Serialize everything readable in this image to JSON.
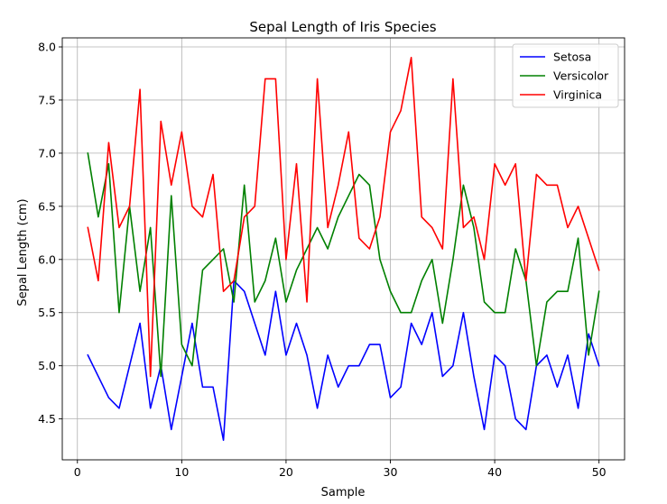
{
  "chart_data": {
    "type": "line",
    "title": "Sepal Length of Iris Species",
    "xlabel": "Sample",
    "ylabel": "Sepal Length (cm)",
    "xlim": [
      -1.45,
      52.45
    ],
    "ylim": [
      4.115,
      8.085
    ],
    "xticks": [
      0,
      10,
      20,
      30,
      40,
      50
    ],
    "xtick_labels": [
      "0",
      "10",
      "20",
      "30",
      "40",
      "50"
    ],
    "yticks": [
      4.5,
      5.0,
      5.5,
      6.0,
      6.5,
      7.0,
      7.5,
      8.0
    ],
    "ytick_labels": [
      "4.5",
      "5.0",
      "5.5",
      "6.0",
      "6.5",
      "7.0",
      "7.5",
      "8.0"
    ],
    "grid": true,
    "legend_position": "top-right",
    "x": [
      1,
      2,
      3,
      4,
      5,
      6,
      7,
      8,
      9,
      10,
      11,
      12,
      13,
      14,
      15,
      16,
      17,
      18,
      19,
      20,
      21,
      22,
      23,
      24,
      25,
      26,
      27,
      28,
      29,
      30,
      31,
      32,
      33,
      34,
      35,
      36,
      37,
      38,
      39,
      40,
      41,
      42,
      43,
      44,
      45,
      46,
      47,
      48,
      49,
      50
    ],
    "series": [
      {
        "name": "Setosa",
        "color": "#0000ff",
        "values": [
          5.1,
          4.9,
          4.7,
          4.6,
          5.0,
          5.4,
          4.6,
          5.0,
          4.4,
          4.9,
          5.4,
          4.8,
          4.8,
          4.3,
          5.8,
          5.7,
          5.4,
          5.1,
          5.7,
          5.1,
          5.4,
          5.1,
          4.6,
          5.1,
          4.8,
          5.0,
          5.0,
          5.2,
          5.2,
          4.7,
          4.8,
          5.4,
          5.2,
          5.5,
          4.9,
          5.0,
          5.5,
          4.9,
          4.4,
          5.1,
          5.0,
          4.5,
          4.4,
          5.0,
          5.1,
          4.8,
          5.1,
          4.6,
          5.3,
          5.0
        ]
      },
      {
        "name": "Versicolor",
        "color": "#008000",
        "values": [
          7.0,
          6.4,
          6.9,
          5.5,
          6.5,
          5.7,
          6.3,
          4.9,
          6.6,
          5.2,
          5.0,
          5.9,
          6.0,
          6.1,
          5.6,
          6.7,
          5.6,
          5.8,
          6.2,
          5.6,
          5.9,
          6.1,
          6.3,
          6.1,
          6.4,
          6.6,
          6.8,
          6.7,
          6.0,
          5.7,
          5.5,
          5.5,
          5.8,
          6.0,
          5.4,
          6.0,
          6.7,
          6.3,
          5.6,
          5.5,
          5.5,
          6.1,
          5.8,
          5.0,
          5.6,
          5.7,
          5.7,
          6.2,
          5.1,
          5.7
        ]
      },
      {
        "name": "Virginica",
        "color": "#ff0000",
        "values": [
          6.3,
          5.8,
          7.1,
          6.3,
          6.5,
          7.6,
          4.9,
          7.3,
          6.7,
          7.2,
          6.5,
          6.4,
          6.8,
          5.7,
          5.8,
          6.4,
          6.5,
          7.7,
          7.7,
          6.0,
          6.9,
          5.6,
          7.7,
          6.3,
          6.7,
          7.2,
          6.2,
          6.1,
          6.4,
          7.2,
          7.4,
          7.9,
          6.4,
          6.3,
          6.1,
          7.7,
          6.3,
          6.4,
          6.0,
          6.9,
          6.7,
          6.9,
          5.8,
          6.8,
          6.7,
          6.7,
          6.3,
          6.5,
          6.2,
          5.9
        ]
      }
    ]
  }
}
